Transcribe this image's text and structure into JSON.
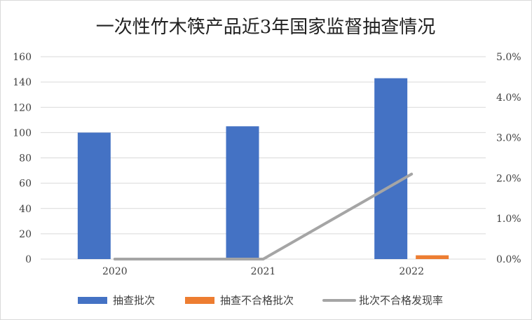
{
  "chart_data": {
    "type": "bar",
    "title": "一次性竹木筷产品近3年国家监督抽查情况",
    "categories": [
      "2020",
      "2021",
      "2022"
    ],
    "series": [
      {
        "name": "抽查批次",
        "kind": "bar",
        "axis": "left",
        "color": "#4472C4",
        "values": [
          100,
          105,
          143
        ]
      },
      {
        "name": "抽查不合格批次",
        "kind": "bar",
        "axis": "left",
        "color": "#ED7D31",
        "values": [
          0,
          0,
          3
        ]
      },
      {
        "name": "批次不合格发现率",
        "kind": "line",
        "axis": "right",
        "color": "#A5A5A5",
        "values": [
          0.0,
          0.0,
          2.1
        ]
      }
    ],
    "left_axis": {
      "ticks": [
        "0",
        "20",
        "40",
        "60",
        "80",
        "100",
        "120",
        "140",
        "160"
      ],
      "ylim": [
        0,
        160
      ]
    },
    "right_axis": {
      "ticks": [
        "0.0%",
        "1.0%",
        "2.0%",
        "3.0%",
        "4.0%",
        "5.0%"
      ],
      "ylim": [
        0,
        5
      ],
      "unit": "%"
    },
    "grid": true,
    "legend_position": "bottom"
  }
}
